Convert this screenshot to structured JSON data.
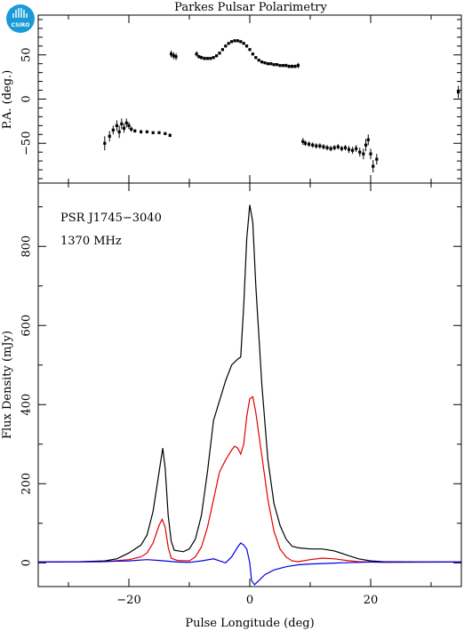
{
  "title": "Parkes Pulsar Polarimetry",
  "logo_text": "CSIRO",
  "colors": {
    "total": "#000000",
    "linear": "#e00000",
    "circular": "#0000e0",
    "logo": "#1a9bd7"
  },
  "chart_data": [
    {
      "type": "scatter",
      "name": "position-angle",
      "ylabel": "P.A. (deg.)",
      "xlim": [
        -35,
        35
      ],
      "ylim": [
        -95,
        95
      ],
      "yticks": [
        -50,
        0,
        50
      ],
      "xticks": [
        -20,
        0,
        20
      ],
      "error_bars": true,
      "points": [
        {
          "x": -24.0,
          "y": -50,
          "err": 8
        },
        {
          "x": -23.2,
          "y": -42,
          "err": 6
        },
        {
          "x": -22.6,
          "y": -35,
          "err": 5
        },
        {
          "x": -22.0,
          "y": -30,
          "err": 6
        },
        {
          "x": -21.6,
          "y": -37,
          "err": 7
        },
        {
          "x": -21.2,
          "y": -28,
          "err": 6
        },
        {
          "x": -20.8,
          "y": -33,
          "err": 5
        },
        {
          "x": -20.4,
          "y": -27,
          "err": 5
        },
        {
          "x": -20.0,
          "y": -30,
          "err": 4
        },
        {
          "x": -19.6,
          "y": -34,
          "err": 3
        },
        {
          "x": -19.0,
          "y": -36,
          "err": 2
        },
        {
          "x": -18.0,
          "y": -37,
          "err": 2
        },
        {
          "x": -17.0,
          "y": -37,
          "err": 1.5
        },
        {
          "x": -16.0,
          "y": -38,
          "err": 1.5
        },
        {
          "x": -15.0,
          "y": -38,
          "err": 1.5
        },
        {
          "x": -14.0,
          "y": -39,
          "err": 1.5
        },
        {
          "x": -13.2,
          "y": -41,
          "err": 2
        },
        {
          "x": -13.0,
          "y": 51,
          "err": 4
        },
        {
          "x": -12.6,
          "y": 49,
          "err": 4
        },
        {
          "x": -12.2,
          "y": 48,
          "err": 4
        },
        {
          "x": -8.8,
          "y": 51,
          "err": 3
        },
        {
          "x": -8.4,
          "y": 48,
          "err": 2
        },
        {
          "x": -8.0,
          "y": 47,
          "err": 2
        },
        {
          "x": -7.5,
          "y": 46,
          "err": 2
        },
        {
          "x": -7.0,
          "y": 46,
          "err": 1.5
        },
        {
          "x": -6.5,
          "y": 46,
          "err": 1.5
        },
        {
          "x": -6.0,
          "y": 47,
          "err": 1.5
        },
        {
          "x": -5.5,
          "y": 49,
          "err": 1.5
        },
        {
          "x": -5.0,
          "y": 52,
          "err": 1.5
        },
        {
          "x": -4.5,
          "y": 56,
          "err": 1.5
        },
        {
          "x": -4.0,
          "y": 60,
          "err": 1.5
        },
        {
          "x": -3.5,
          "y": 63,
          "err": 1.5
        },
        {
          "x": -3.0,
          "y": 65,
          "err": 1.5
        },
        {
          "x": -2.5,
          "y": 66,
          "err": 1.5
        },
        {
          "x": -2.0,
          "y": 66,
          "err": 1.5
        },
        {
          "x": -1.5,
          "y": 65,
          "err": 1.5
        },
        {
          "x": -1.0,
          "y": 63,
          "err": 1.5
        },
        {
          "x": -0.5,
          "y": 60,
          "err": 1.5
        },
        {
          "x": 0.0,
          "y": 56,
          "err": 1.5
        },
        {
          "x": 0.5,
          "y": 51,
          "err": 1.5
        },
        {
          "x": 1.0,
          "y": 47,
          "err": 1.5
        },
        {
          "x": 1.5,
          "y": 44,
          "err": 1.5
        },
        {
          "x": 2.0,
          "y": 42,
          "err": 1.5
        },
        {
          "x": 2.5,
          "y": 41,
          "err": 1.5
        },
        {
          "x": 3.0,
          "y": 40,
          "err": 1.5
        },
        {
          "x": 3.5,
          "y": 40,
          "err": 1.5
        },
        {
          "x": 4.0,
          "y": 39,
          "err": 1.5
        },
        {
          "x": 4.5,
          "y": 39,
          "err": 1.5
        },
        {
          "x": 5.0,
          "y": 38,
          "err": 1.5
        },
        {
          "x": 5.5,
          "y": 38,
          "err": 1.5
        },
        {
          "x": 6.0,
          "y": 38,
          "err": 2
        },
        {
          "x": 6.5,
          "y": 37,
          "err": 2
        },
        {
          "x": 7.0,
          "y": 37,
          "err": 2
        },
        {
          "x": 7.5,
          "y": 37,
          "err": 2
        },
        {
          "x": 8.0,
          "y": 38,
          "err": 3
        },
        {
          "x": 8.8,
          "y": -48,
          "err": 4
        },
        {
          "x": 9.2,
          "y": -50,
          "err": 3
        },
        {
          "x": 9.8,
          "y": -51,
          "err": 3
        },
        {
          "x": 10.4,
          "y": -52,
          "err": 3
        },
        {
          "x": 11.0,
          "y": -53,
          "err": 3
        },
        {
          "x": 11.6,
          "y": -53,
          "err": 3
        },
        {
          "x": 12.2,
          "y": -54,
          "err": 3
        },
        {
          "x": 12.8,
          "y": -55,
          "err": 3
        },
        {
          "x": 13.4,
          "y": -56,
          "err": 3
        },
        {
          "x": 14.0,
          "y": -55,
          "err": 3
        },
        {
          "x": 14.6,
          "y": -54,
          "err": 3
        },
        {
          "x": 15.2,
          "y": -56,
          "err": 3
        },
        {
          "x": 15.8,
          "y": -55,
          "err": 3
        },
        {
          "x": 16.4,
          "y": -57,
          "err": 4
        },
        {
          "x": 17.0,
          "y": -58,
          "err": 4
        },
        {
          "x": 17.6,
          "y": -56,
          "err": 4
        },
        {
          "x": 18.2,
          "y": -60,
          "err": 5
        },
        {
          "x": 18.8,
          "y": -62,
          "err": 6
        },
        {
          "x": 19.2,
          "y": -52,
          "err": 7
        },
        {
          "x": 19.6,
          "y": -46,
          "err": 6
        },
        {
          "x": 20.0,
          "y": -62,
          "err": 6
        },
        {
          "x": 20.4,
          "y": -76,
          "err": 7
        },
        {
          "x": 21.0,
          "y": -68,
          "err": 6
        },
        {
          "x": 34.5,
          "y": 8,
          "err": 7
        }
      ]
    },
    {
      "type": "line",
      "name": "flux-profile",
      "xlabel": "Pulse Longitude (deg)",
      "ylabel": "Flux Density (mJy)",
      "xlim": [
        -35,
        35
      ],
      "ylim": [
        -60,
        960
      ],
      "xticks": [
        -20,
        0,
        20
      ],
      "yticks": [
        0,
        200,
        400,
        600,
        800
      ],
      "annotations": [
        "PSR J1745−3040",
        "1370 MHz"
      ],
      "series": [
        {
          "key": "total",
          "points": [
            [
              -35,
              2
            ],
            [
              -28,
              3
            ],
            [
              -24,
              5
            ],
            [
              -22,
              10
            ],
            [
              -20,
              25
            ],
            [
              -18,
              45
            ],
            [
              -17,
              70
            ],
            [
              -16,
              130
            ],
            [
              -15,
              230
            ],
            [
              -14.4,
              290
            ],
            [
              -14,
              240
            ],
            [
              -13.5,
              120
            ],
            [
              -13,
              55
            ],
            [
              -12.5,
              32
            ],
            [
              -11,
              28
            ],
            [
              -10,
              35
            ],
            [
              -9,
              60
            ],
            [
              -8,
              120
            ],
            [
              -7,
              230
            ],
            [
              -6,
              360
            ],
            [
              -5,
              410
            ],
            [
              -4,
              460
            ],
            [
              -3,
              500
            ],
            [
              -2,
              515
            ],
            [
              -1.5,
              520
            ],
            [
              -1,
              650
            ],
            [
              -0.5,
              820
            ],
            [
              0,
              905
            ],
            [
              0.5,
              860
            ],
            [
              1,
              700
            ],
            [
              2,
              450
            ],
            [
              3,
              260
            ],
            [
              4,
              150
            ],
            [
              5,
              95
            ],
            [
              6,
              60
            ],
            [
              7,
              42
            ],
            [
              8,
              38
            ],
            [
              10,
              35
            ],
            [
              12,
              35
            ],
            [
              14,
              30
            ],
            [
              16,
              20
            ],
            [
              18,
              10
            ],
            [
              20,
              5
            ],
            [
              22,
              3
            ],
            [
              28,
              2
            ],
            [
              35,
              2
            ]
          ]
        },
        {
          "key": "linear",
          "points": [
            [
              -35,
              2
            ],
            [
              -24,
              3
            ],
            [
              -20,
              8
            ],
            [
              -18,
              15
            ],
            [
              -17,
              25
            ],
            [
              -16,
              50
            ],
            [
              -15,
              95
            ],
            [
              -14.5,
              110
            ],
            [
              -14,
              90
            ],
            [
              -13.5,
              40
            ],
            [
              -13,
              12
            ],
            [
              -12,
              6
            ],
            [
              -10,
              5
            ],
            [
              -9,
              15
            ],
            [
              -8,
              40
            ],
            [
              -7,
              90
            ],
            [
              -6,
              160
            ],
            [
              -5,
              230
            ],
            [
              -4,
              260
            ],
            [
              -3,
              285
            ],
            [
              -2.5,
              295
            ],
            [
              -2,
              290
            ],
            [
              -1.5,
              275
            ],
            [
              -1,
              300
            ],
            [
              -0.5,
              370
            ],
            [
              0,
              415
            ],
            [
              0.5,
              420
            ],
            [
              1,
              380
            ],
            [
              2,
              270
            ],
            [
              3,
              160
            ],
            [
              4,
              80
            ],
            [
              5,
              35
            ],
            [
              6,
              15
            ],
            [
              7,
              5
            ],
            [
              8,
              3
            ],
            [
              10,
              8
            ],
            [
              12,
              12
            ],
            [
              14,
              10
            ],
            [
              16,
              6
            ],
            [
              18,
              3
            ],
            [
              22,
              1
            ],
            [
              35,
              2
            ]
          ]
        },
        {
          "key": "circular",
          "points": [
            [
              -35,
              2
            ],
            [
              -25,
              3
            ],
            [
              -20,
              5
            ],
            [
              -17,
              8
            ],
            [
              -15,
              6
            ],
            [
              -12,
              2
            ],
            [
              -10,
              1
            ],
            [
              -8,
              5
            ],
            [
              -6,
              10
            ],
            [
              -5,
              5
            ],
            [
              -4,
              0
            ],
            [
              -3,
              15
            ],
            [
              -2,
              40
            ],
            [
              -1.5,
              50
            ],
            [
              -1,
              45
            ],
            [
              -0.5,
              35
            ],
            [
              0,
              0
            ],
            [
              0.3,
              -45
            ],
            [
              0.8,
              -55
            ],
            [
              1.5,
              -45
            ],
            [
              2.5,
              -30
            ],
            [
              4,
              -18
            ],
            [
              6,
              -10
            ],
            [
              8,
              -5
            ],
            [
              10,
              -3
            ],
            [
              15,
              0
            ],
            [
              20,
              2
            ],
            [
              35,
              2
            ]
          ]
        }
      ]
    }
  ]
}
